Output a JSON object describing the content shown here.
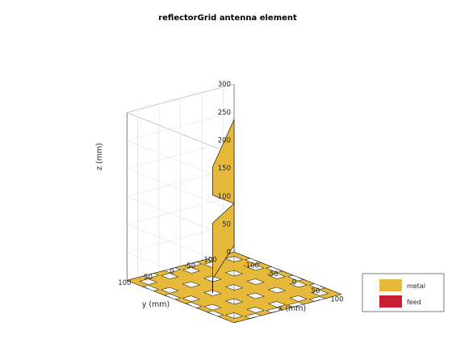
{
  "chart_data": {
    "type": "3d-surface",
    "title": "reflectorGrid antenna element",
    "xlabel": "x (mm)",
    "ylabel": "y (mm)",
    "zlabel": "z (mm)",
    "xlim": [
      -125,
      125
    ],
    "ylim": [
      -125,
      125
    ],
    "zlim": [
      0,
      300
    ],
    "xticks": [
      -100,
      -50,
      0,
      50,
      100
    ],
    "yticks": [
      -100,
      -50,
      0,
      50,
      100
    ],
    "zticks": [
      0,
      50,
      100,
      150,
      200,
      250,
      300
    ],
    "grid": true,
    "legend_position": "bottom-right",
    "series": [
      {
        "name": "metal",
        "color": "#E6B93A"
      },
      {
        "name": "feed",
        "color": "#C81E32"
      }
    ],
    "reflector_grid": {
      "z": 0,
      "extent_mm": [
        -125,
        125
      ],
      "holes_per_side": 5,
      "hole_pitch_mm": 50,
      "hole_size_mm": 20
    },
    "radiator_panels": [
      {
        "corners_mm": [
          [
            0,
            0,
            150
          ],
          [
            0,
            0,
            300
          ],
          [
            0,
            50,
            225
          ],
          [
            0,
            50,
            175
          ]
        ]
      },
      {
        "corners_mm": [
          [
            0,
            0,
            150
          ],
          [
            0,
            0,
            75
          ],
          [
            0,
            50,
            25
          ],
          [
            0,
            50,
            125
          ]
        ]
      }
    ]
  }
}
